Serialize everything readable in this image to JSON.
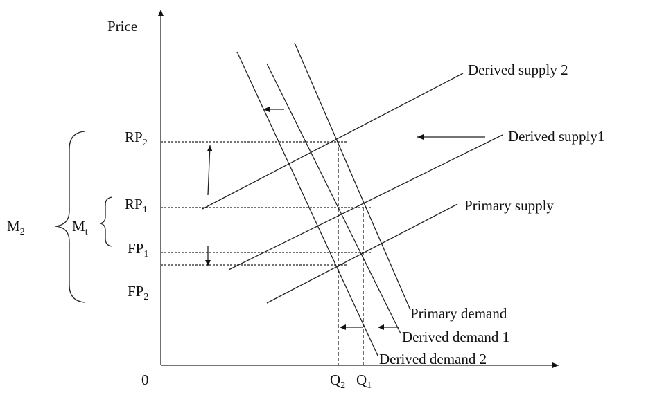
{
  "axes": {
    "y_label": "Price",
    "origin": "0"
  },
  "price_levels": [
    {
      "label": "RP",
      "sub": "2"
    },
    {
      "label": "RP",
      "sub": "1"
    },
    {
      "label": "FP",
      "sub": "1"
    },
    {
      "label": "FP",
      "sub": "2"
    }
  ],
  "quantities": [
    {
      "label": "Q",
      "sub": "2"
    },
    {
      "label": "Q",
      "sub": "1"
    }
  ],
  "curves": [
    "Derived supply 2",
    "Derived supply1",
    "Primary supply",
    "Primary demand",
    "Derived demand 1",
    "Derived demand 2"
  ],
  "brackets": [
    {
      "label": "M",
      "sub": "t"
    },
    {
      "label": "M",
      "sub": "2"
    }
  ]
}
